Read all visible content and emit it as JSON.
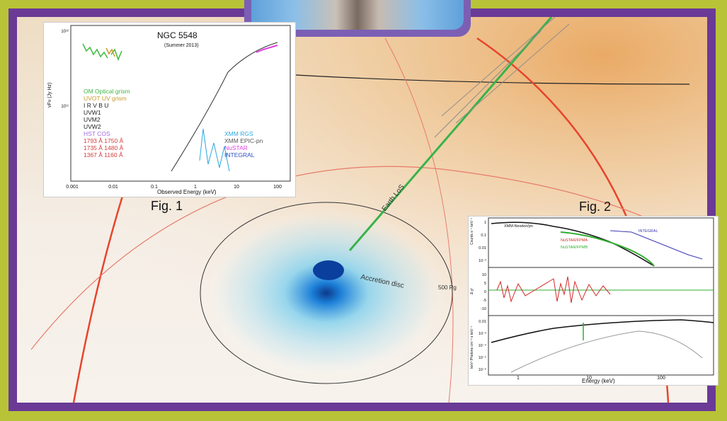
{
  "figure1": {
    "caption": "Fig. 1",
    "title": "NGC 5548",
    "subtitle": "(Summer 2013)",
    "ylabel": "νFν (Jy Hz)",
    "xlabel": "Observed Energy (keV)",
    "y_ticks": [
      "10¹²",
      "10¹¹"
    ],
    "x_ticks": [
      "0.001",
      "0.01",
      "0.1",
      "1",
      "10",
      "100"
    ],
    "legend_left": [
      {
        "label": "OM Optical grism",
        "color": "#3fb83f"
      },
      {
        "label": "UVOT UV grism",
        "color": "#c99a2e"
      },
      {
        "label": "I R V B U",
        "color": "#222222"
      },
      {
        "label": "UVW1",
        "color": "#222222"
      },
      {
        "label": "UVM2",
        "color": "#222222"
      },
      {
        "label": "UVW2",
        "color": "#222222"
      },
      {
        "label": "HST COS",
        "color": "#a36be0"
      },
      {
        "label": "1793 Å 1750 Å",
        "color": "#d33a3a"
      },
      {
        "label": "1735 Å 1480 Å",
        "color": "#d33a3a"
      },
      {
        "label": "1367 Å 1160 Å",
        "color": "#d33a3a"
      }
    ],
    "legend_right": [
      {
        "label": "XMM RGS",
        "color": "#2aa7e0"
      },
      {
        "label": "XMM EPIC-pn",
        "color": "#555555"
      },
      {
        "label": "NuSTAR",
        "color": "#e040e0"
      },
      {
        "label": "INTEGRAL",
        "color": "#2b4fc4"
      }
    ]
  },
  "figure2": {
    "caption": "Fig. 2",
    "legend": [
      {
        "label": "XMM-Newton/pn",
        "color": "#111111"
      },
      {
        "label": "INTEGRAL",
        "color": "#3a3ab4"
      },
      {
        "label": "NuSTAR/FPMA",
        "color": "#d22a2a"
      },
      {
        "label": "NuSTAR/FPMB",
        "color": "#2fae2f"
      }
    ],
    "top_ylabel": "Counts s⁻¹ keV⁻¹",
    "top_y_ticks": [
      "1",
      "0.1",
      "0.01",
      "10⁻³"
    ],
    "mid_ylabel": "Δ χ²",
    "mid_y_ticks": [
      "10",
      "5",
      "0",
      "-5",
      "-10"
    ],
    "bot_ylabel": "keV² Photons cm⁻² s keV⁻¹",
    "bot_y_ticks": [
      "0.01",
      "10⁻³",
      "10⁻⁴",
      "10⁻⁵",
      "10⁻⁶"
    ],
    "xlabel": "Energy (keV)",
    "x_ticks": [
      "1",
      "10",
      "100"
    ]
  },
  "scene": {
    "accretion_label": "Accretion disc",
    "scale_label": "500 Rg",
    "los_label": "Earth LoS"
  }
}
